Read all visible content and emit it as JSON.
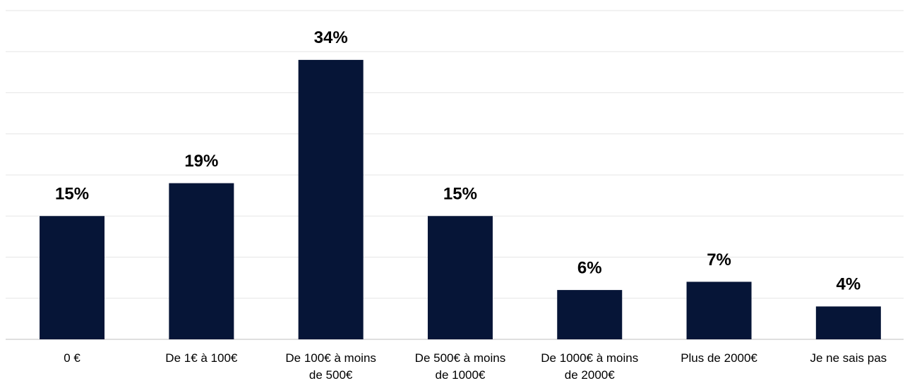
{
  "chart_data": {
    "type": "bar",
    "categories": [
      "0 €",
      "De 1€ à 100€",
      "De 100€ à moins de 500€",
      "De 500€ à moins de 1000€",
      "De 1000€ à moins de 2000€",
      "Plus de 2000€",
      "Je ne sais pas"
    ],
    "values": [
      15,
      19,
      34,
      15,
      6,
      7,
      4
    ],
    "value_labels": [
      "15%",
      "19%",
      "34%",
      "15%",
      "6%",
      "7%",
      "4%"
    ],
    "color": "#061537",
    "ylim": [
      0,
      40
    ],
    "yticks": [
      0,
      5,
      10,
      15,
      20,
      25,
      30,
      35,
      40
    ],
    "grid": true
  }
}
